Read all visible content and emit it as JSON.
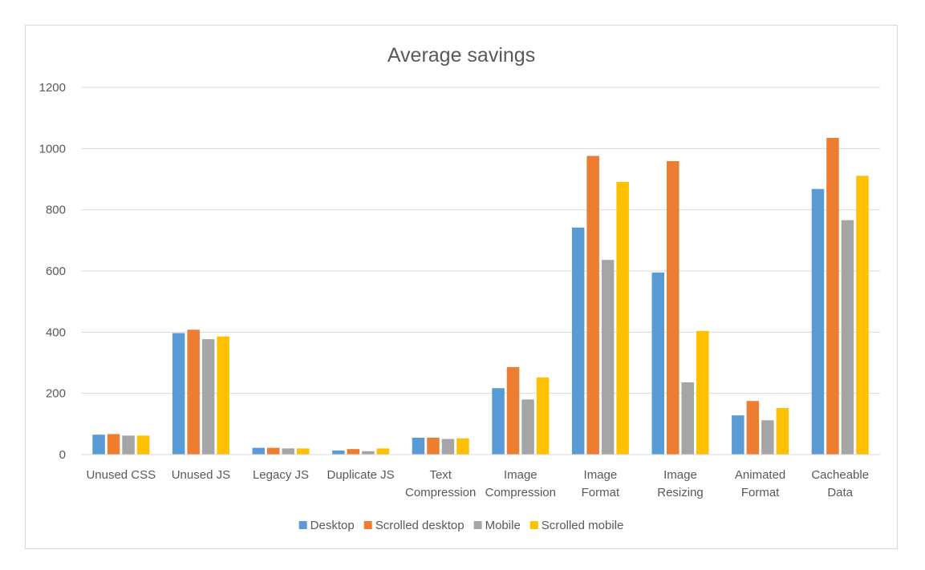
{
  "chart_data": {
    "type": "bar",
    "title": "Average savings",
    "xlabel": "",
    "ylabel": "",
    "ylim": [
      0,
      1200
    ],
    "yticks": [
      0,
      200,
      400,
      600,
      800,
      1000,
      1200
    ],
    "grid": true,
    "legend_position": "bottom",
    "categories": [
      [
        "Unused CSS"
      ],
      [
        "Unused JS"
      ],
      [
        "Legacy JS"
      ],
      [
        "Duplicate JS"
      ],
      [
        "Text",
        "Compression"
      ],
      [
        "Image",
        "Compression"
      ],
      [
        "Image",
        "Format"
      ],
      [
        "Image",
        "Resizing"
      ],
      [
        "Animated",
        "Format"
      ],
      [
        "Cacheable",
        "Data"
      ]
    ],
    "series": [
      {
        "name": "Desktop",
        "color": "#5B9BD5",
        "values": [
          65,
          397,
          22,
          13,
          55,
          217,
          742,
          595,
          128,
          868
        ]
      },
      {
        "name": "Scrolled desktop",
        "color": "#ED7D31",
        "values": [
          67,
          408,
          22,
          18,
          55,
          286,
          976,
          959,
          175,
          1035
        ]
      },
      {
        "name": "Mobile",
        "color": "#A5A5A5",
        "values": [
          62,
          377,
          20,
          11,
          51,
          180,
          636,
          236,
          112,
          766
        ]
      },
      {
        "name": "Scrolled mobile",
        "color": "#FFC000",
        "values": [
          62,
          386,
          20,
          20,
          53,
          252,
          891,
          404,
          152,
          911
        ]
      }
    ]
  }
}
